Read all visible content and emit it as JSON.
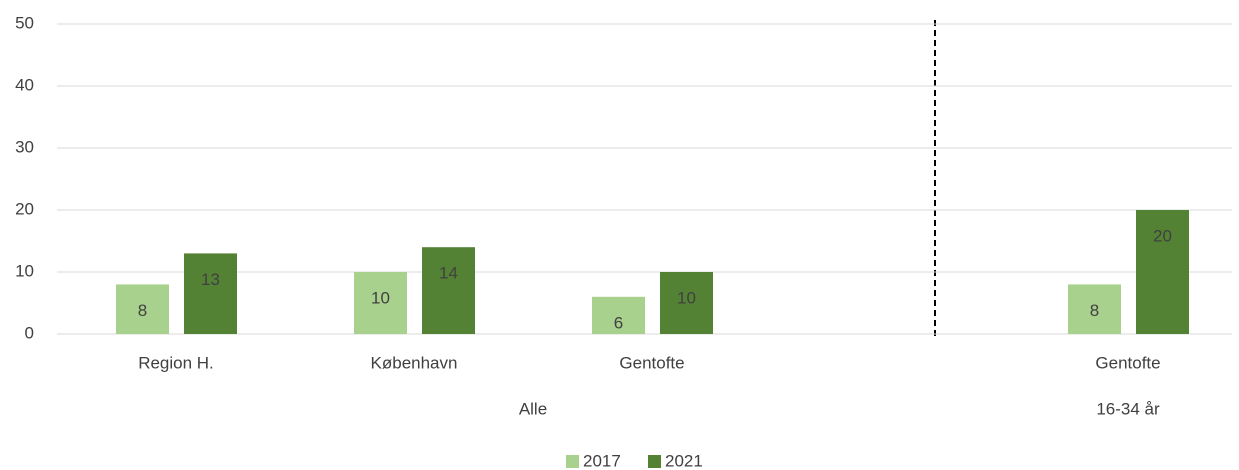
{
  "chart_data": {
    "type": "bar",
    "categories": [
      "Region H.",
      "København",
      "Gentofte",
      null,
      "Gentofte"
    ],
    "groups": [
      {
        "name": "Alle",
        "count": 4
      },
      {
        "name": "16-34 år",
        "count": 1
      }
    ],
    "series": [
      {
        "name": "2017",
        "color": "#a9d18e",
        "values": [
          8,
          10,
          6,
          null,
          8
        ]
      },
      {
        "name": "2021",
        "color": "#548235",
        "values": [
          13,
          14,
          10,
          null,
          20
        ]
      }
    ],
    "ylim": [
      0,
      50
    ],
    "yticks": [
      0,
      10,
      20,
      30,
      40,
      50
    ],
    "grid": true,
    "legend": "bottom"
  }
}
